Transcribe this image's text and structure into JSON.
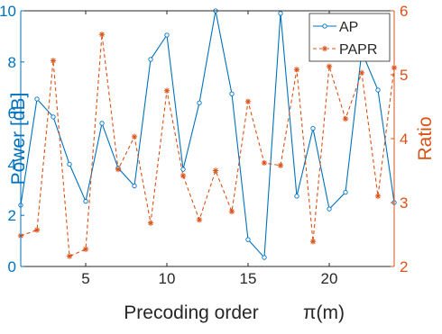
{
  "chart_data": {
    "type": "line",
    "x": [
      1,
      2,
      3,
      4,
      5,
      6,
      7,
      8,
      9,
      10,
      11,
      12,
      13,
      14,
      15,
      16,
      17,
      18,
      19,
      20,
      21,
      22,
      23,
      24
    ],
    "xlabel": "Precoding order",
    "xlabel_math": "π(m)",
    "xlim": [
      1,
      24
    ],
    "xticks": [
      5,
      10,
      15,
      20
    ],
    "ylabel_left": "Power [dB]",
    "ylim_left": [
      0,
      10
    ],
    "yticks_left": [
      0,
      2,
      4,
      6,
      8,
      10
    ],
    "ylabel_right": "Ratio",
    "ylim_right": [
      2,
      6
    ],
    "yticks_right": [
      2,
      3,
      4,
      5,
      6
    ],
    "grid": false,
    "legend_position": "top-right",
    "colors": {
      "left_axis": "#0072BD",
      "right_axis": "#D95319"
    },
    "series": [
      {
        "name": "AP",
        "axis": "left",
        "color": "#0072BD",
        "line_style": "solid",
        "marker": "circle",
        "values": [
          2.4,
          6.55,
          5.85,
          4.0,
          2.55,
          5.6,
          3.85,
          3.15,
          8.1,
          9.05,
          3.8,
          6.4,
          10.0,
          6.75,
          1.05,
          0.35,
          9.9,
          2.75,
          5.4,
          2.25,
          2.9,
          8.4,
          6.9,
          2.5
        ]
      },
      {
        "name": "PAPR",
        "axis": "right",
        "color": "#D95319",
        "line_style": "dashed",
        "marker": "asterisk",
        "values": [
          2.48,
          2.57,
          5.22,
          2.16,
          2.27,
          5.63,
          3.52,
          4.03,
          2.68,
          4.75,
          3.42,
          2.73,
          3.5,
          2.86,
          4.58,
          3.62,
          3.58,
          5.08,
          2.39,
          5.13,
          4.31,
          5.03,
          3.1,
          5.11
        ]
      }
    ]
  }
}
